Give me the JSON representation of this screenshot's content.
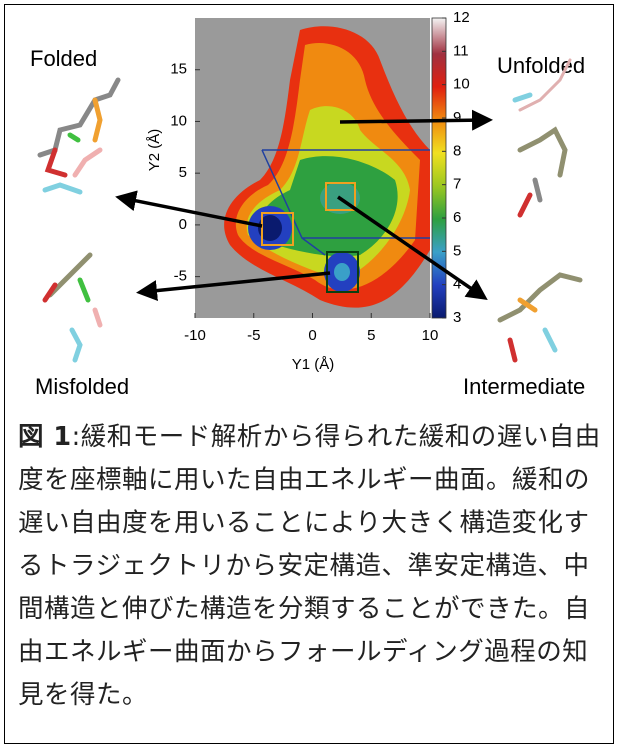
{
  "figure": {
    "panels": {
      "folded": "Folded",
      "unfolded": "Unfolded",
      "misfolded": "Misfolded",
      "intermediate": "Intermediate"
    },
    "plot": {
      "x_label": "Y1 (Å)",
      "y_label": "Y2 (Å)",
      "xlim": [
        -10,
        10
      ],
      "ylim": [
        -9,
        20
      ],
      "xticks": [
        -10,
        -5,
        0,
        5,
        10
      ],
      "yticks": [
        -5,
        0,
        5,
        10,
        15
      ],
      "colorbar": {
        "lim": [
          3,
          12
        ],
        "ticks": [
          3,
          4,
          5,
          6,
          7,
          8,
          9,
          10,
          11,
          12
        ]
      }
    }
  },
  "caption": {
    "label": "図 1",
    "text": ":緩和モード解析から得られた緩和の遅い自由度を座標軸に用いた自由エネルギー曲面。緩和の遅い自由度を用いることにより大きく構造変化するトラジェクトリから安定構造、準安定構造、中間構造と伸びた構造を分類することができた。自由エネルギー曲面からフォールディング過程の知見を得た。"
  }
}
